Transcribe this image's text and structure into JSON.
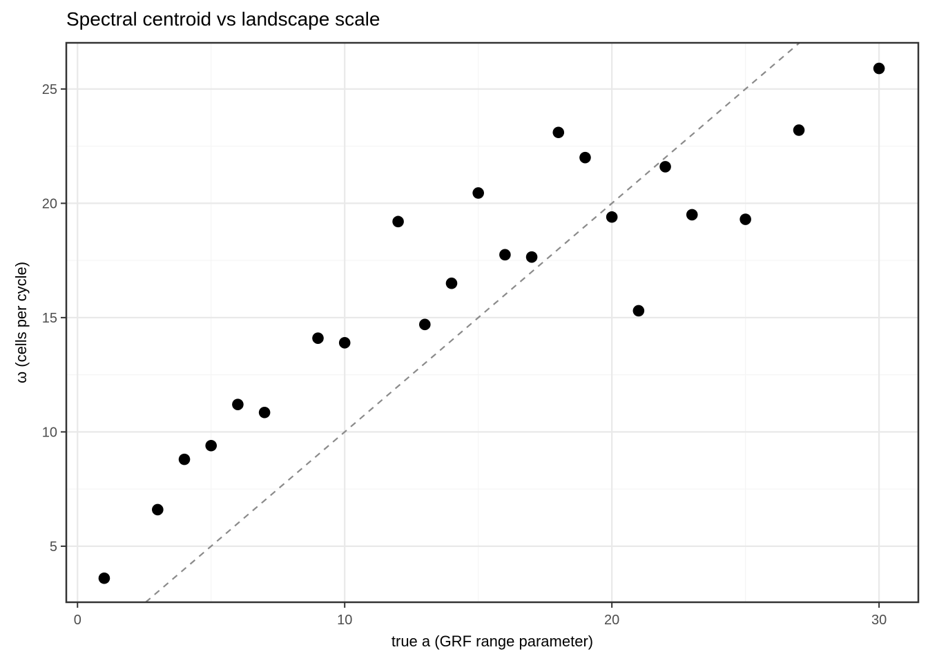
{
  "chart_data": {
    "type": "scatter",
    "title": "Spectral centroid vs landscape scale",
    "xlabel": "true a (GRF range parameter)",
    "ylabel": "ω (cells per cycle)",
    "xlim": [
      -0.42,
      31.47
    ],
    "ylim": [
      2.55,
      27.02
    ],
    "x_major_ticks": [
      0,
      10,
      20,
      30
    ],
    "x_minor_gridlines": [
      5,
      15,
      25
    ],
    "y_major_ticks": [
      5,
      10,
      15,
      20,
      25
    ],
    "y_minor_gridlines": [
      7.5,
      12.5,
      17.5,
      22.5
    ],
    "grid": true,
    "legend": false,
    "points": [
      [
        1,
        3.6
      ],
      [
        3,
        6.6
      ],
      [
        4,
        8.8
      ],
      [
        5,
        9.4
      ],
      [
        6,
        11.2
      ],
      [
        7,
        10.85
      ],
      [
        9,
        14.1
      ],
      [
        10,
        13.9
      ],
      [
        12,
        19.2
      ],
      [
        13,
        14.7
      ],
      [
        14,
        16.5
      ],
      [
        15,
        20.45
      ],
      [
        16,
        17.75
      ],
      [
        17,
        17.65
      ],
      [
        18,
        23.1
      ],
      [
        19,
        22.0
      ],
      [
        20,
        19.4
      ],
      [
        21,
        15.3
      ],
      [
        22,
        21.6
      ],
      [
        23,
        19.5
      ],
      [
        25,
        19.3
      ],
      [
        27,
        23.2
      ],
      [
        30,
        25.9
      ]
    ],
    "reference_line": {
      "type": "identity",
      "slope": 1,
      "intercept": 0,
      "style": "dashed"
    },
    "point_radius": 8.3,
    "colors": {
      "point": "#000000",
      "reference_line": "#8A8A8A",
      "grid_major": "#E9E9E9",
      "grid_minor": "#F5F5F5",
      "panel_border": "#333333",
      "tick": "#333333",
      "tick_label": "#4D4D4D",
      "text": "#000000",
      "background": "#FFFFFF"
    }
  }
}
